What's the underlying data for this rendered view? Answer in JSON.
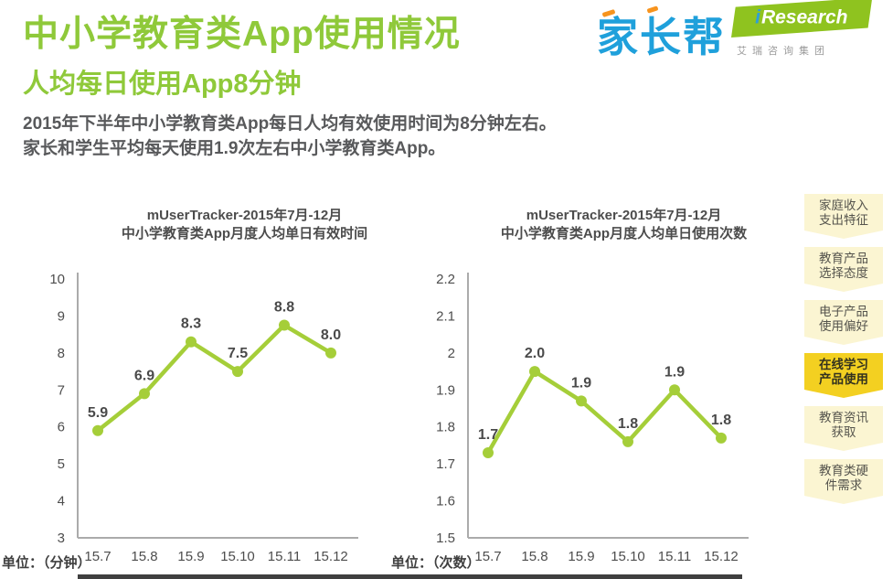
{
  "header": {
    "title": "中小学教育类App使用情况",
    "subtitle": "人均每日使用App8分钟",
    "description_line1": "2015年下半年中小学教育类App每日人均有效使用时间为8分钟左右。",
    "description_line2": "家长和学生平均每天使用1.9次左右中小学教育类App。",
    "logo_jiazhangbang": "家长帮",
    "logo_iresearch_i": "i",
    "logo_iresearch_rest": "Research",
    "logo_iresearch_sub": "艾瑞咨询集团"
  },
  "colors": {
    "title_green": "#8FC93A",
    "line_green": "#A5CE39",
    "axis_gray": "#ABABAB",
    "label_gray": "#4A4A4A",
    "tab_bg": "#FBF5D2",
    "tab_active_bg": "#F3D021",
    "jzb_blue": "#1FA0DB",
    "iresearch_green": "#8FC31F"
  },
  "chart_data": [
    {
      "type": "line",
      "title_line1": "mUserTracker-2015年7月-12月",
      "title_line2": "中小学教育类App月度人均单日有效时间",
      "unit": "单位：（分钟）",
      "categories": [
        "15.7",
        "15.8",
        "15.9",
        "15.10",
        "15.11",
        "15.12"
      ],
      "values": [
        5.9,
        6.9,
        8.3,
        7.5,
        8.8,
        8.0
      ],
      "labels": [
        "5.9",
        "6.9",
        "8.3",
        "7.5",
        "8.8",
        "8.0"
      ],
      "plot_values": [
        5.9,
        6.9,
        8.3,
        7.5,
        8.75,
        8.0
      ],
      "ylim": [
        3,
        10
      ],
      "ytick_labels": [
        "10",
        "9",
        "8",
        "7",
        "6",
        "5",
        "4",
        "3"
      ],
      "grid": false,
      "legend": "none",
      "line_color": "#A5CE39"
    },
    {
      "type": "line",
      "title_line1": "mUserTracker-2015年7月-12月",
      "title_line2": "中小学教育类App月度人均单日使用次数",
      "unit": "单位：（次数）",
      "categories": [
        "15.7",
        "15.8",
        "15.9",
        "15.10",
        "15.11",
        "15.12"
      ],
      "values": [
        1.7,
        2.0,
        1.9,
        1.8,
        1.9,
        1.8
      ],
      "labels": [
        "1.7",
        "2.0",
        "1.9",
        "1.8",
        "1.9",
        "1.8"
      ],
      "plot_values": [
        1.73,
        1.95,
        1.87,
        1.76,
        1.9,
        1.77
      ],
      "ylim": [
        1.5,
        2.2
      ],
      "ytick_labels": [
        "2.2",
        "2.1",
        "2",
        "1.9",
        "1.8",
        "1.7",
        "1.6",
        "1.5"
      ],
      "grid": false,
      "legend": "none",
      "line_color": "#A5CE39"
    }
  ],
  "sidebar": {
    "tabs": [
      {
        "label": "家庭收入\n支出特征",
        "active": false
      },
      {
        "label": "教育产品\n选择态度",
        "active": false
      },
      {
        "label": "电子产品\n使用偏好",
        "active": false
      },
      {
        "label": "在线学习\n产品使用",
        "active": true
      },
      {
        "label": "教育资讯\n获取",
        "active": false
      },
      {
        "label": "教育类硬\n件需求",
        "active": false
      }
    ]
  }
}
